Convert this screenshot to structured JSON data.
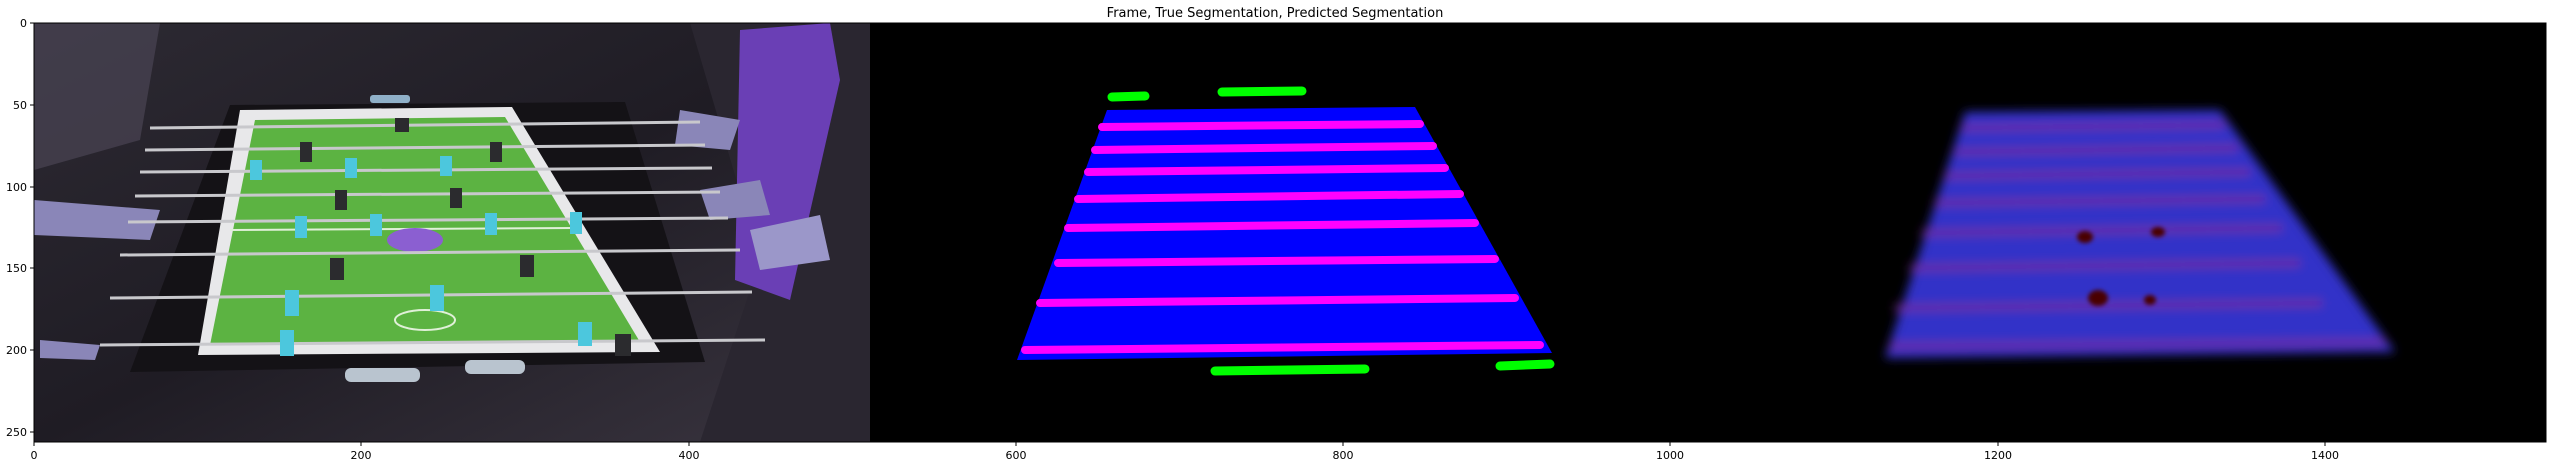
{
  "figure": {
    "title": "Frame, True Segmentation, Predicted Segmentation",
    "x_ticks": [
      "0",
      "200",
      "400",
      "600",
      "800",
      "1000",
      "1200",
      "1400"
    ],
    "y_ticks": [
      "0",
      "50",
      "100",
      "150",
      "200",
      "250"
    ]
  },
  "panels": [
    {
      "name": "frame"
    },
    {
      "name": "true-segmentation"
    },
    {
      "name": "predicted-segmentation"
    }
  ],
  "colors": {
    "table_green": "#5cb342",
    "segmentation_blue": "#0000ff",
    "rod_magenta": "#ff00ff",
    "goal_green": "#00ff00",
    "player_cyan": "#4cc7dd",
    "background": "#000000"
  }
}
